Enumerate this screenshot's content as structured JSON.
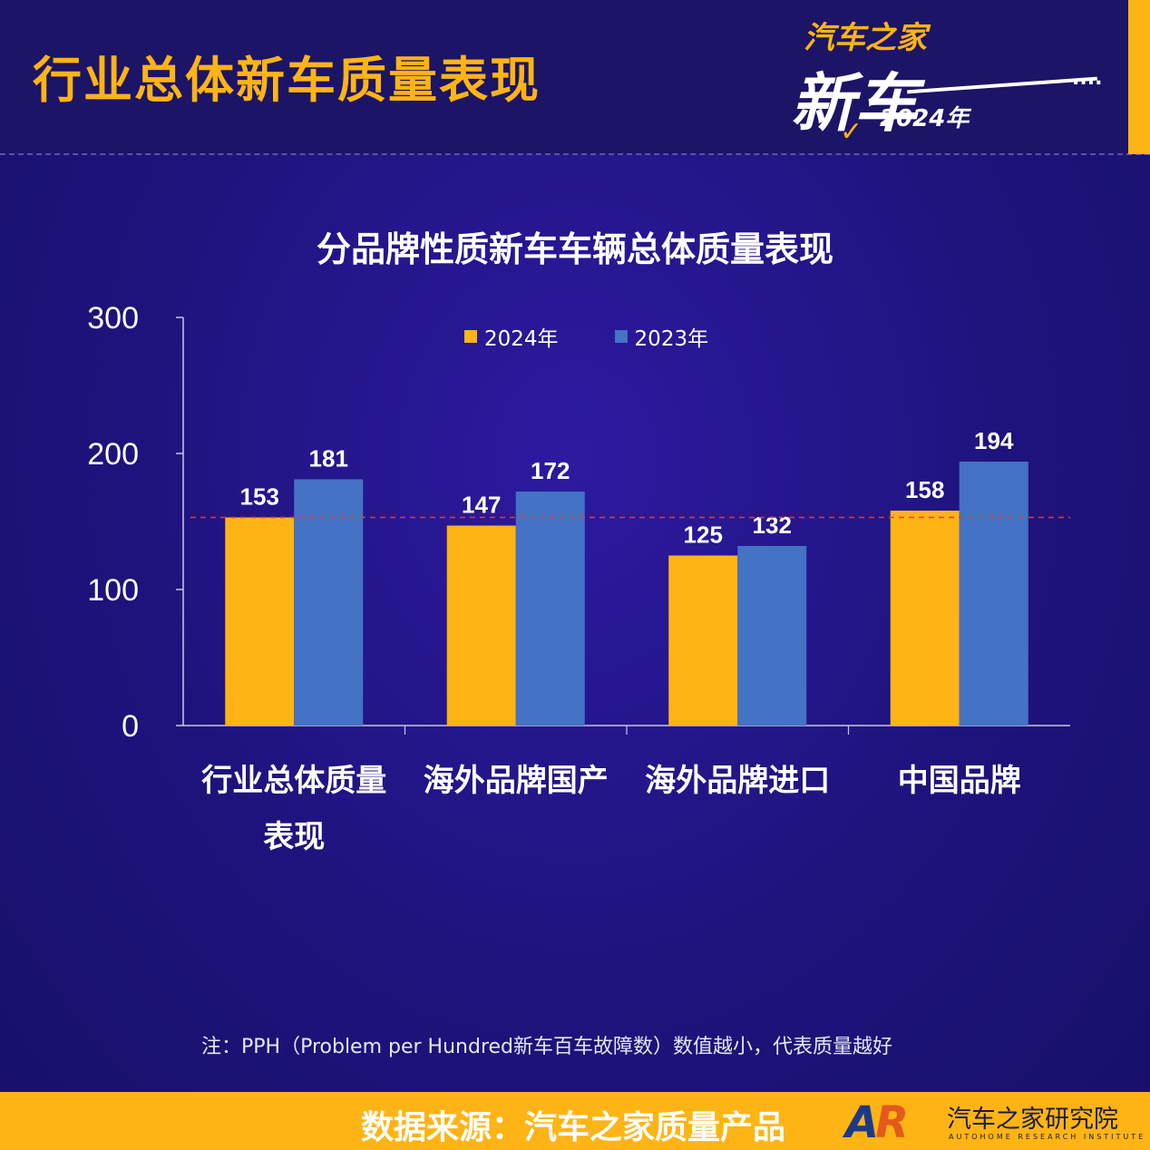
{
  "header": {
    "title": "行业总体新车质量表现",
    "logo_brand": "汽车之家",
    "logo_big": "新车",
    "logo_year": "2024年",
    "logo_dots": "...."
  },
  "legend": {
    "items": [
      {
        "label": "2024年",
        "color": "#ffb415"
      },
      {
        "label": "2023年",
        "color": "#4472c4"
      }
    ]
  },
  "chart_data": {
    "type": "bar",
    "title": "分品牌性质新车车辆总体质量表现",
    "categories": [
      "行业总体质量表现",
      "海外品牌国产",
      "海外品牌进口",
      "中国品牌"
    ],
    "category_lines": [
      [
        "行业总体质量",
        "表现"
      ],
      [
        "海外品牌国产"
      ],
      [
        "海外品牌进口"
      ],
      [
        "中国品牌"
      ]
    ],
    "series": [
      {
        "name": "2024年",
        "values": [
          153,
          147,
          125,
          158
        ],
        "color": "#ffb415"
      },
      {
        "name": "2023年",
        "values": [
          181,
          172,
          132,
          194
        ],
        "color": "#4472c4"
      }
    ],
    "ylim": [
      0,
      300
    ],
    "yticks": [
      0,
      100,
      200,
      300
    ],
    "reference_line": {
      "value": 153,
      "color": "#e03a3a",
      "style": "dashed"
    },
    "grid": false,
    "legend_position": "top-center"
  },
  "note": "注：PPH（Problem per Hundred新车百车故障数）数值越小，代表质量越好",
  "footer": {
    "source": "数据来源：汽车之家质量产品",
    "logo_mark_a": "A",
    "logo_mark_r": "R",
    "org_name": "汽车之家研究院",
    "org_name_en": "AUTOHOME RESEARCH INSTITUTE"
  }
}
